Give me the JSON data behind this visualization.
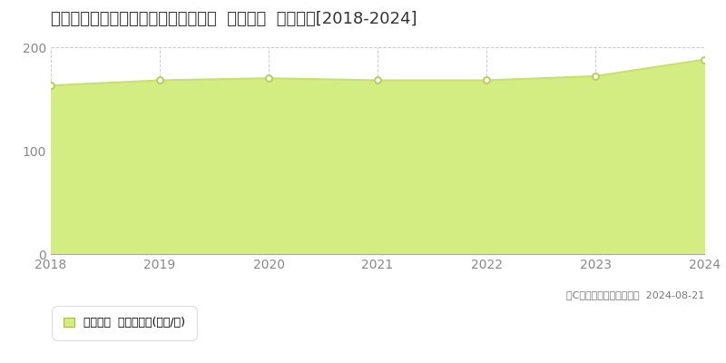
{
  "title": "東京都世田谷区野毛１丁目９５番５外  地価公示  地価推移[2018-2024]",
  "years": [
    2018,
    2019,
    2020,
    2021,
    2022,
    2023,
    2024
  ],
  "values": [
    163,
    168,
    170,
    168,
    168,
    172,
    188
  ],
  "line_color": "#c8e06e",
  "fill_color": "#d4ed82",
  "marker_facecolor": "#ffffff",
  "marker_edgecolor": "#b8d060",
  "background_color": "#ffffff",
  "grid_color": "#cccccc",
  "ylim": [
    0,
    200
  ],
  "yticks": [
    0,
    100,
    200
  ],
  "copyright_text": "（C）土地価格ドットコム  2024-08-21",
  "legend_label": "地価公示  平均坪単価(万円/坪)",
  "title_fontsize": 13,
  "axis_fontsize": 10,
  "legend_fontsize": 9,
  "copyright_fontsize": 8,
  "tick_color": "#888888",
  "spine_color": "#aaaaaa"
}
